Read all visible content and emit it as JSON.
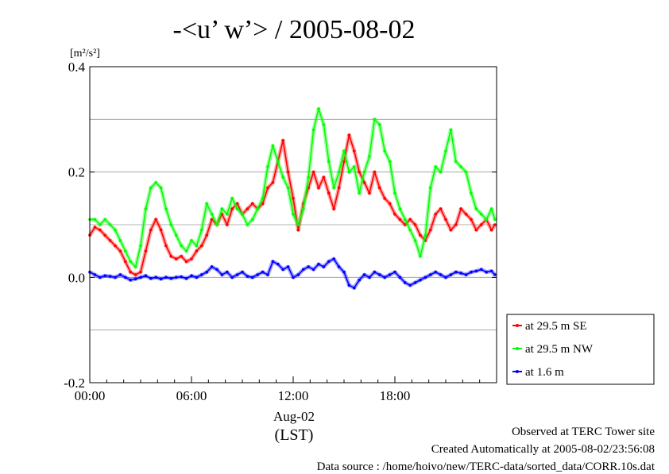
{
  "chart_data": {
    "type": "line",
    "title": "-<u’ w’> / 2005-08-02",
    "ylabel_unit": "[m²/s²]",
    "ylim": [
      -0.2,
      0.4
    ],
    "yticks": [
      -0.2,
      0.0,
      0.2,
      0.4
    ],
    "ytick_labels": [
      "-0.2",
      "0.0",
      "0.2",
      "0.4"
    ],
    "xlim": [
      0,
      24
    ],
    "xticks": [
      0,
      6,
      12,
      18
    ],
    "xtick_labels": [
      "00:00",
      "06:00",
      "12:00",
      "18:00"
    ],
    "date_label": "Aug-02",
    "xlabel": "(LST)",
    "grid": "horizontal",
    "legend_position": "lower-right outside",
    "series": [
      {
        "name": "at 29.5 m SE",
        "color": "#ff0000",
        "x": [
          0.0,
          0.3,
          0.6,
          0.9,
          1.2,
          1.5,
          1.8,
          2.1,
          2.4,
          2.7,
          3.0,
          3.3,
          3.6,
          3.9,
          4.2,
          4.5,
          4.8,
          5.1,
          5.4,
          5.7,
          6.0,
          6.3,
          6.6,
          6.9,
          7.2,
          7.5,
          7.8,
          8.1,
          8.4,
          8.7,
          9.0,
          9.3,
          9.6,
          9.9,
          10.2,
          10.5,
          10.8,
          11.1,
          11.4,
          11.7,
          12.0,
          12.3,
          12.6,
          12.9,
          13.2,
          13.5,
          13.8,
          14.1,
          14.4,
          14.7,
          15.0,
          15.3,
          15.6,
          15.9,
          16.2,
          16.5,
          16.8,
          17.1,
          17.4,
          17.7,
          18.0,
          18.3,
          18.6,
          18.9,
          19.2,
          19.5,
          19.8,
          20.1,
          20.4,
          20.7,
          21.0,
          21.3,
          21.6,
          21.9,
          22.2,
          22.5,
          22.8,
          23.1,
          23.4,
          23.7,
          23.9
        ],
        "values": [
          0.08,
          0.095,
          0.09,
          0.08,
          0.07,
          0.06,
          0.05,
          0.03,
          0.01,
          0.005,
          0.01,
          0.05,
          0.09,
          0.11,
          0.09,
          0.06,
          0.04,
          0.035,
          0.04,
          0.03,
          0.035,
          0.05,
          0.06,
          0.08,
          0.11,
          0.1,
          0.12,
          0.1,
          0.13,
          0.14,
          0.12,
          0.13,
          0.14,
          0.13,
          0.14,
          0.17,
          0.18,
          0.22,
          0.26,
          0.2,
          0.15,
          0.09,
          0.14,
          0.17,
          0.2,
          0.17,
          0.19,
          0.16,
          0.13,
          0.17,
          0.22,
          0.27,
          0.24,
          0.2,
          0.18,
          0.16,
          0.2,
          0.17,
          0.15,
          0.14,
          0.12,
          0.11,
          0.1,
          0.11,
          0.1,
          0.08,
          0.07,
          0.09,
          0.12,
          0.13,
          0.11,
          0.09,
          0.1,
          0.13,
          0.12,
          0.11,
          0.09,
          0.1,
          0.11,
          0.09,
          0.1
        ]
      },
      {
        "name": "at 29.5 m NW",
        "color": "#00ff00",
        "x": [
          0.0,
          0.3,
          0.6,
          0.9,
          1.2,
          1.5,
          1.8,
          2.1,
          2.4,
          2.7,
          3.0,
          3.3,
          3.6,
          3.9,
          4.2,
          4.5,
          4.8,
          5.1,
          5.4,
          5.7,
          6.0,
          6.3,
          6.6,
          6.9,
          7.2,
          7.5,
          7.8,
          8.1,
          8.4,
          8.7,
          9.0,
          9.3,
          9.6,
          9.9,
          10.2,
          10.5,
          10.8,
          11.1,
          11.4,
          11.7,
          12.0,
          12.3,
          12.6,
          12.9,
          13.2,
          13.5,
          13.8,
          14.1,
          14.4,
          14.7,
          15.0,
          15.3,
          15.6,
          15.9,
          16.2,
          16.5,
          16.8,
          17.1,
          17.4,
          17.7,
          18.0,
          18.3,
          18.6,
          18.9,
          19.2,
          19.5,
          19.8,
          20.1,
          20.4,
          20.7,
          21.0,
          21.3,
          21.6,
          21.9,
          22.2,
          22.5,
          22.8,
          23.1,
          23.4,
          23.7,
          23.9
        ],
        "values": [
          0.11,
          0.11,
          0.1,
          0.11,
          0.1,
          0.09,
          0.07,
          0.05,
          0.03,
          0.02,
          0.06,
          0.13,
          0.17,
          0.18,
          0.17,
          0.13,
          0.1,
          0.08,
          0.06,
          0.05,
          0.07,
          0.06,
          0.09,
          0.14,
          0.12,
          0.1,
          0.13,
          0.12,
          0.15,
          0.13,
          0.12,
          0.1,
          0.11,
          0.13,
          0.15,
          0.21,
          0.25,
          0.22,
          0.19,
          0.17,
          0.12,
          0.1,
          0.13,
          0.19,
          0.28,
          0.32,
          0.29,
          0.22,
          0.17,
          0.2,
          0.24,
          0.2,
          0.21,
          0.16,
          0.2,
          0.23,
          0.3,
          0.29,
          0.24,
          0.22,
          0.16,
          0.13,
          0.11,
          0.09,
          0.07,
          0.04,
          0.08,
          0.17,
          0.21,
          0.2,
          0.24,
          0.28,
          0.22,
          0.21,
          0.2,
          0.16,
          0.13,
          0.12,
          0.11,
          0.13,
          0.11
        ]
      },
      {
        "name": "at 1.6 m",
        "color": "#0000ff",
        "x": [
          0.0,
          0.3,
          0.6,
          0.9,
          1.2,
          1.5,
          1.8,
          2.1,
          2.4,
          2.7,
          3.0,
          3.3,
          3.6,
          3.9,
          4.2,
          4.5,
          4.8,
          5.1,
          5.4,
          5.7,
          6.0,
          6.3,
          6.6,
          6.9,
          7.2,
          7.5,
          7.8,
          8.1,
          8.4,
          8.7,
          9.0,
          9.3,
          9.6,
          9.9,
          10.2,
          10.5,
          10.8,
          11.1,
          11.4,
          11.7,
          12.0,
          12.3,
          12.6,
          12.9,
          13.2,
          13.5,
          13.8,
          14.1,
          14.4,
          14.7,
          15.0,
          15.3,
          15.6,
          15.9,
          16.2,
          16.5,
          16.8,
          17.1,
          17.4,
          17.7,
          18.0,
          18.3,
          18.6,
          18.9,
          19.2,
          19.5,
          19.8,
          20.1,
          20.4,
          20.7,
          21.0,
          21.3,
          21.6,
          21.9,
          22.2,
          22.5,
          22.8,
          23.1,
          23.4,
          23.7,
          23.9
        ],
        "values": [
          0.01,
          0.005,
          0.0,
          0.003,
          0.002,
          0.0,
          0.005,
          0.0,
          -0.005,
          -0.003,
          0.0,
          0.003,
          -0.002,
          0.0,
          -0.003,
          0.0,
          -0.002,
          0.0,
          0.001,
          -0.002,
          0.003,
          0.0,
          0.005,
          0.01,
          0.02,
          0.015,
          0.005,
          0.01,
          0.0,
          0.005,
          0.01,
          0.002,
          0.0,
          0.005,
          0.01,
          0.005,
          0.03,
          0.025,
          0.015,
          0.02,
          0.0,
          0.005,
          0.015,
          0.02,
          0.015,
          0.025,
          0.02,
          0.03,
          0.035,
          0.02,
          0.01,
          -0.015,
          -0.02,
          -0.005,
          0.005,
          0.0,
          0.01,
          0.005,
          0.0,
          0.005,
          0.01,
          0.0,
          -0.01,
          -0.015,
          -0.01,
          -0.005,
          0.0,
          0.005,
          0.01,
          0.005,
          0.0,
          0.005,
          0.01,
          0.008,
          0.005,
          0.01,
          0.012,
          0.015,
          0.01,
          0.012,
          0.005
        ]
      }
    ]
  },
  "footer": {
    "line1": "Observed at TERC Tower site",
    "line2": "Created Automatically at 2005-08-02/23:56:08",
    "line3": "Data source : /home/hoivo/new/TERC-data/sorted_data/CORR.10s.dat"
  }
}
